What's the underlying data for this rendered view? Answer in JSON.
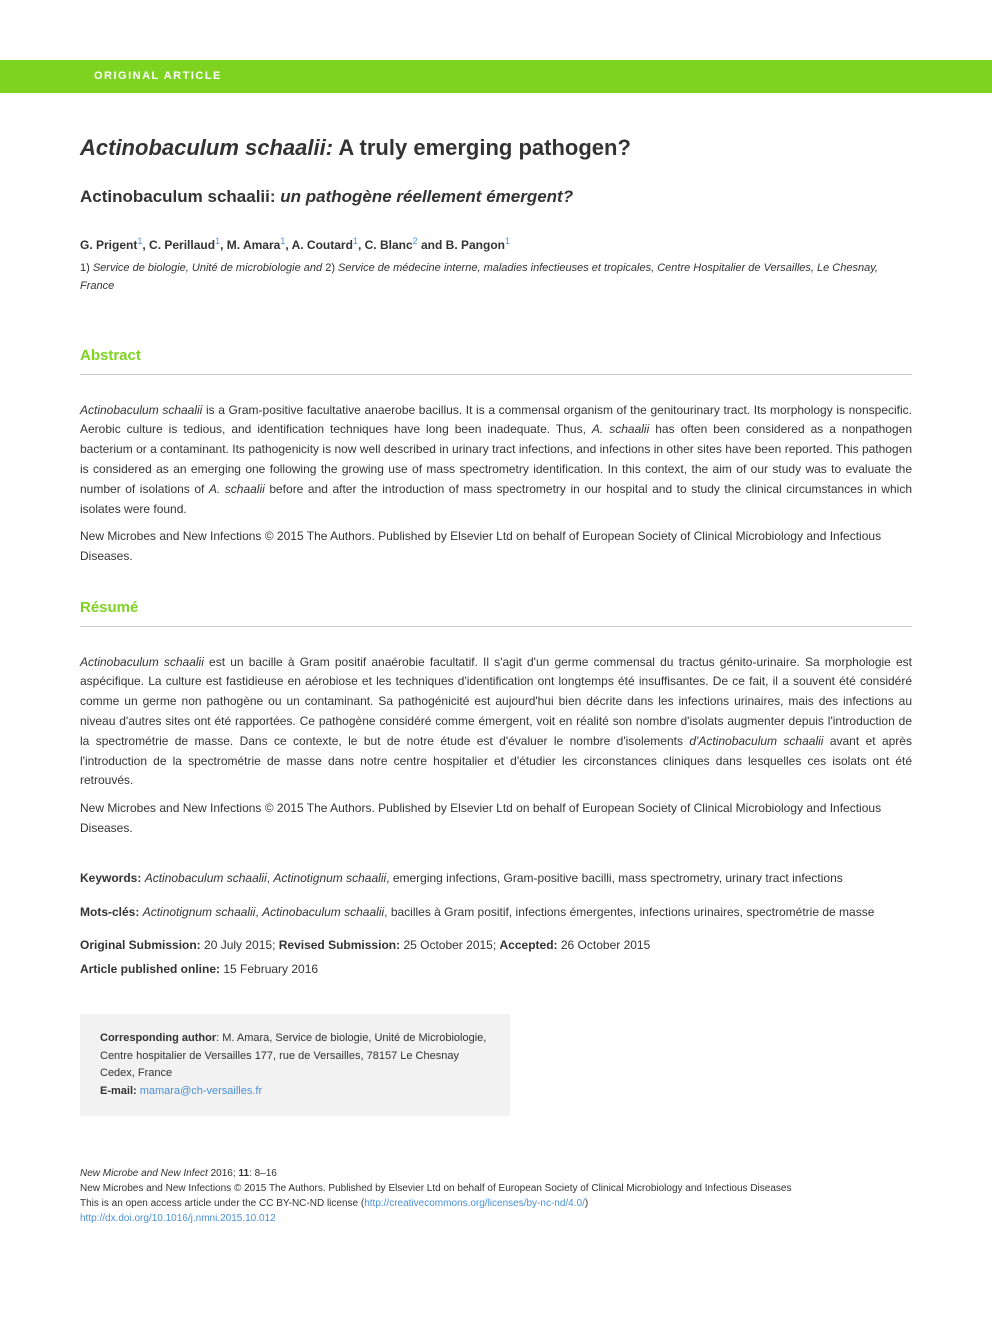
{
  "article_type": "ORIGINAL ARTICLE",
  "title_species": "Actinobaculum schaalii:",
  "title_rest": " A truly emerging pathogen?",
  "subtitle_species": "Actinobaculum schaalii:",
  "subtitle_fr": " un pathogène réellement émergent?",
  "authors": {
    "a1": "G. Prigent",
    "a1_aff": "1",
    "a2": "C. Perillaud",
    "a2_aff": "1",
    "a3": "M. Amara",
    "a3_aff": "1",
    "a4": "A. Coutard",
    "a4_aff": "1",
    "a5": "C. Blanc",
    "a5_aff": "2",
    "a6": "B. Pangon",
    "a6_aff": "1"
  },
  "affiliations": {
    "num1": "1) ",
    "text1": "Service de biologie, Unité de microbiologie and ",
    "num2": "2) ",
    "text2": "Service de médecine interne, maladies infectieuses et tropicales, Centre Hospitalier de Versailles, Le Chesnay, France"
  },
  "abstract_heading": "Abstract",
  "abstract_body": {
    "s1": "Actinobaculum schaalii",
    "t1": " is a Gram-positive facultative anaerobe bacillus. It is a commensal organism of the genitourinary tract. Its morphology is nonspecific. Aerobic culture is tedious, and identification techniques have long been inadequate. Thus, ",
    "s2": "A. schaalii",
    "t2": " has often been considered as a nonpathogen bacterium or a contaminant. Its pathogenicity is now well described in urinary tract infections, and infections in other sites have been reported. This pathogen is considered as an emerging one following the growing use of mass spectrometry identification. In this context, the aim of our study was to evaluate the number of isolations of ",
    "s3": "A. schaalii",
    "t3": " before and after the introduction of mass spectrometry in our hospital and to study the clinical circumstances in which isolates were found."
  },
  "abstract_copyright": "New Microbes and New Infections © 2015 The Authors. Published by Elsevier Ltd on behalf of European Society of Clinical Microbiology and Infectious Diseases.",
  "resume_heading": "Résumé",
  "resume_body": {
    "s1": "Actinobaculum schaalii",
    "t1": " est un bacille à Gram positif anaérobie facultatif. Il s'agit d'un germe commensal du tractus génito-urinaire. Sa morphologie est aspécifique. La culture est fastidieuse en aérobiose et les techniques d'identification ont longtemps été insuffisantes. De ce fait, il a souvent été considéré comme un germe non pathogène ou un contaminant. Sa pathogénicité est aujourd'hui bien décrite dans les infections urinaires, mais des infections au niveau d'autres sites ont été rapportées. Ce pathogène considéré comme émergent, voit en réalité son nombre d'isolats augmenter depuis l'introduction de la spectrométrie de masse. Dans ce contexte, le but de notre étude est d'évaluer le nombre d'isolements ",
    "s2": "d'Actinobaculum schaalii",
    "t2": " avant et après l'introduction de la spectrométrie de masse dans notre centre hospitalier et d'étudier les circonstances cliniques dans lesquelles ces isolats ont été retrouvés."
  },
  "resume_copyright": "New Microbes and New Infections © 2015 The Authors. Published by Elsevier Ltd on behalf of European Society of Clinical Microbiology and Infectious Diseases.",
  "keywords": {
    "label": "Keywords: ",
    "s1": "Actinobaculum schaalii",
    "sep1": ", ",
    "s2": "Actinotignum schaalii",
    "rest": ", emerging infections, Gram-positive bacilli, mass spectrometry, urinary tract infections"
  },
  "motscles": {
    "label": "Mots-clés: ",
    "s1": "Actinotignum schaalii",
    "sep1": ", ",
    "s2": "Actinobaculum schaalii",
    "rest": ", bacilles à Gram positif, infections émergentes, infections urinaires, spectrométrie de masse"
  },
  "dates": {
    "orig_label": "Original Submission: ",
    "orig_val": "20 July 2015; ",
    "rev_label": "Revised Submission: ",
    "rev_val": "25 October 2015; ",
    "acc_label": "Accepted: ",
    "acc_val": "26 October 2015",
    "pub_label": "Article published online: ",
    "pub_val": "15 February 2016"
  },
  "corresponding": {
    "label": "Corresponding author",
    "text": ": M. Amara, Service de biologie, Unité de Microbiologie, Centre hospitalier de Versailles 177, rue de Versailles, 78157 Le Chesnay Cedex, France",
    "email_label": "E-mail: ",
    "email": "mamara@ch-versailles.fr"
  },
  "footer": {
    "journal": "New Microbe and New Infect",
    "year_vol": " 2016; ",
    "vol": "11",
    "pages": ": 8–16",
    "line2": "New Microbes and New Infections © 2015 The Authors. Published by Elsevier Ltd on behalf of European Society of Clinical Microbiology and Infectious Diseases",
    "line3a": "This is an open access article under the CC BY-NC-ND license (",
    "line3b": "http://creativecommons.org/licenses/by-nc-nd/4.0/",
    "line3c": ")",
    "doi": "http://dx.doi.org/10.1016/j.nmni.2015.10.012"
  },
  "colors": {
    "green": "#7ed321",
    "link_blue": "#4a90d9",
    "text": "#333333",
    "box_bg": "#f2f2f2",
    "rule": "#cccccc"
  }
}
